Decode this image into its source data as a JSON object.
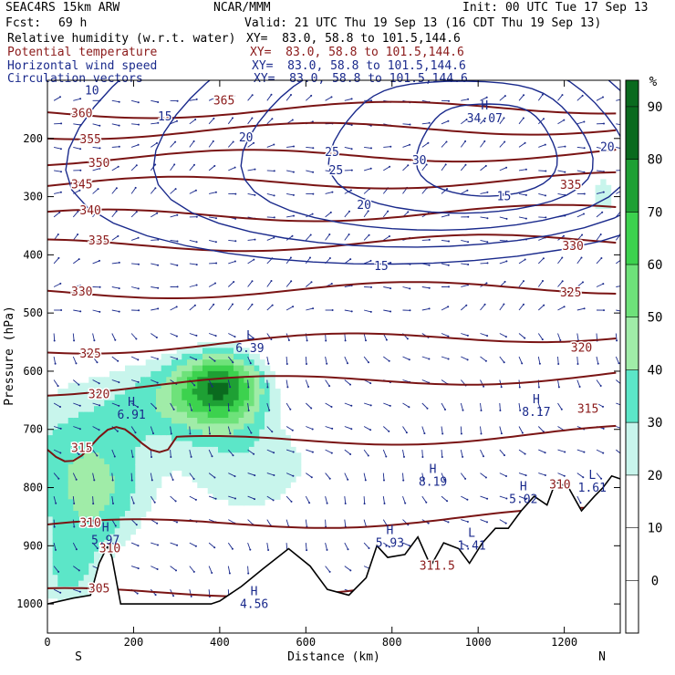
{
  "header": {
    "model": "SEAC4RS 15km ARW",
    "center": "NCAR/MMM",
    "init": "Init: 00 UTC Tue 17 Sep 13",
    "fcst_label": "Fcst:",
    "fcst_value": "69 h",
    "valid": "Valid: 21 UTC Thu 19 Sep 13 (16 CDT Thu 19 Sep 13)"
  },
  "fields": [
    {
      "name": "Relative humidity (w.r.t. water)",
      "xy": "XY=  83.0, 58.8 to 101.5,144.6",
      "color": "#000000"
    },
    {
      "name": "Potential temperature",
      "xy": "XY=  83.0, 58.8 to 101.5,144.6",
      "color": "#8b1a1a"
    },
    {
      "name": "Horizontal wind speed",
      "xy": "XY=  83.0, 58.8 to 101.5,144.6",
      "color": "#1a2a8c"
    },
    {
      "name": "Circulation vectors",
      "xy": "XY=  83.0, 58.8 to 101.5,144.6",
      "color": "#1a2a8c"
    }
  ],
  "chart_data": {
    "type": "heatmap",
    "xlabel": "Distance (km)",
    "ylabel": "Pressure (hPa)",
    "xlim": [
      0,
      1330
    ],
    "ylim": [
      1050,
      100
    ],
    "x_ticks": [
      0,
      200,
      400,
      600,
      800,
      1000,
      1200
    ],
    "y_ticks": [
      200,
      300,
      400,
      500,
      600,
      700,
      800,
      900,
      1000
    ],
    "endpoints": {
      "left": "S",
      "right": "N"
    },
    "colorbar": {
      "unit": "%",
      "levels": [
        0,
        10,
        20,
        30,
        40,
        50,
        60,
        70,
        80,
        90
      ],
      "colors": [
        "#ffffff",
        "#ffffff",
        "#ffffff",
        "#c8f5ec",
        "#5ce6c8",
        "#a0eca8",
        "#6ee27a",
        "#3cd24e",
        "#1ea034",
        "#0a6a1e"
      ]
    },
    "theta_contours": [
      {
        "label": "360",
        "pressure": 155
      },
      {
        "label": "355",
        "pressure": 190
      },
      {
        "label": "350",
        "pressure": 235
      },
      {
        "label": "345",
        "pressure": 280
      },
      {
        "label": "340",
        "pressure": 335
      },
      {
        "label": "335",
        "pressure": 385
      },
      {
        "label": "330",
        "pressure": 465
      },
      {
        "label": "325",
        "pressure": 560
      },
      {
        "label": "320",
        "pressure": 630
      },
      {
        "label": "315",
        "pressure": 730
      },
      {
        "label": "310",
        "pressure": 870
      },
      {
        "label": "305",
        "pressure": 985
      }
    ],
    "wind_contours": [
      {
        "label": "10"
      },
      {
        "label": "15"
      },
      {
        "label": "20"
      },
      {
        "label": "25"
      },
      {
        "label": "30"
      }
    ],
    "extrema": [
      {
        "type": "H",
        "value": "34.07",
        "x": 1015,
        "p": 150
      },
      {
        "type": "L",
        "value": "6.39",
        "x": 470,
        "p": 545
      },
      {
        "type": "H",
        "value": "6.91",
        "x": 195,
        "p": 660
      },
      {
        "type": "H",
        "value": "8.17",
        "x": 1135,
        "p": 655
      },
      {
        "type": "H",
        "value": "8.19",
        "x": 895,
        "p": 775
      },
      {
        "type": "H",
        "value": "5.02",
        "x": 1105,
        "p": 805
      },
      {
        "type": "L",
        "value": "1.61",
        "x": 1265,
        "p": 785
      },
      {
        "type": "H",
        "value": "5.97",
        "x": 135,
        "p": 875
      },
      {
        "type": "H",
        "value": "5.93",
        "x": 795,
        "p": 880
      },
      {
        "type": "L",
        "value": "1.41",
        "x": 985,
        "p": 885
      },
      {
        "type": "H",
        "value": "4.56",
        "x": 480,
        "p": 985
      }
    ],
    "extra_labels": [
      {
        "text": "365",
        "x": 410,
        "p": 135,
        "color": "#8b1a1a"
      },
      {
        "text": "335",
        "x": 1215,
        "p": 280,
        "color": "#8b1a1a"
      },
      {
        "text": "330",
        "x": 1220,
        "p": 385,
        "color": "#8b1a1a"
      },
      {
        "text": "325",
        "x": 1215,
        "p": 465,
        "color": "#8b1a1a"
      },
      {
        "text": "320",
        "x": 1240,
        "p": 560,
        "color": "#8b1a1a"
      },
      {
        "text": "315",
        "x": 1255,
        "p": 665,
        "color": "#8b1a1a"
      },
      {
        "text": "310",
        "x": 1190,
        "p": 795,
        "color": "#8b1a1a"
      },
      {
        "text": "310",
        "x": 145,
        "p": 905,
        "color": "#8b1a1a"
      },
      {
        "text": "311.5",
        "x": 905,
        "p": 935,
        "color": "#8b1a1a"
      },
      {
        "text": "20",
        "x": 1300,
        "p": 215,
        "color": "#1a2a8c"
      },
      {
        "text": "15",
        "x": 1060,
        "p": 300,
        "color": "#1a2a8c"
      },
      {
        "text": "20",
        "x": 735,
        "p": 315,
        "color": "#1a2a8c"
      },
      {
        "text": "25",
        "x": 670,
        "p": 255,
        "color": "#1a2a8c"
      },
      {
        "text": "15",
        "x": 775,
        "p": 420,
        "color": "#1a2a8c"
      }
    ],
    "terrain": [
      [
        0,
        1000
      ],
      [
        60,
        990
      ],
      [
        100,
        985
      ],
      [
        120,
        930
      ],
      [
        140,
        900
      ],
      [
        150,
        920
      ],
      [
        170,
        1000
      ],
      [
        380,
        1000
      ],
      [
        400,
        995
      ],
      [
        450,
        970
      ],
      [
        500,
        940
      ],
      [
        560,
        905
      ],
      [
        610,
        935
      ],
      [
        650,
        975
      ],
      [
        700,
        985
      ],
      [
        740,
        955
      ],
      [
        765,
        900
      ],
      [
        790,
        920
      ],
      [
        830,
        915
      ],
      [
        860,
        885
      ],
      [
        890,
        935
      ],
      [
        920,
        895
      ],
      [
        955,
        905
      ],
      [
        980,
        930
      ],
      [
        1010,
        895
      ],
      [
        1040,
        870
      ],
      [
        1070,
        870
      ],
      [
        1100,
        840
      ],
      [
        1130,
        815
      ],
      [
        1160,
        830
      ],
      [
        1180,
        790
      ],
      [
        1210,
        800
      ],
      [
        1240,
        840
      ],
      [
        1270,
        815
      ],
      [
        1290,
        800
      ],
      [
        1310,
        780
      ],
      [
        1330,
        785
      ]
    ]
  }
}
